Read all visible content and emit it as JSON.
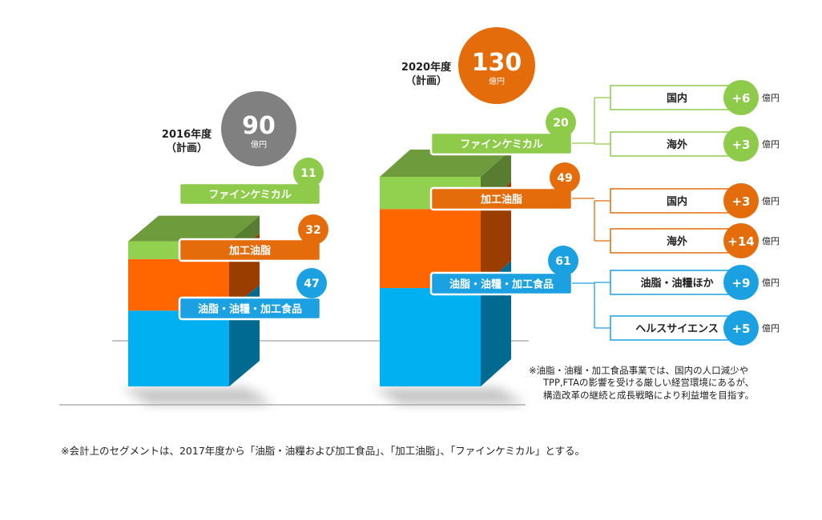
{
  "chart_data": {
    "type": "bar",
    "subtype": "stacked-3d",
    "categories": [
      "2016年度",
      "2020年度"
    ],
    "category_sublabel": "（計画）",
    "unit": "億円",
    "totals": [
      90,
      130
    ],
    "total_colors": [
      "#808080",
      "#E46C0A"
    ],
    "series": [
      {
        "name": "油脂・油糧・加工食品",
        "values": [
          47,
          61
        ],
        "color": "#00B0F0",
        "badge_color": "#1BA1E2"
      },
      {
        "name": "加工油脂",
        "values": [
          32,
          49
        ],
        "color": "#FF6600",
        "badge_color": "#E46C0A"
      },
      {
        "name": "ファインケミカル",
        "values": [
          11,
          20
        ],
        "color": "#92D050",
        "badge_color": "#8FCB4A"
      }
    ],
    "breakdown": [
      {
        "segment": "ファインケミカル",
        "color": "#8FCB4A",
        "items": [
          {
            "label": "国内",
            "delta": "+6"
          },
          {
            "label": "海外",
            "delta": "+3"
          }
        ]
      },
      {
        "segment": "加工油脂",
        "color": "#E46C0A",
        "items": [
          {
            "label": "国内",
            "delta": "+3"
          },
          {
            "label": "海外",
            "delta": "+14"
          }
        ]
      },
      {
        "segment": "油脂・油糧・加工食品",
        "color": "#1BA1E2",
        "items": [
          {
            "label": "油脂・油糧ほか",
            "delta": "+9"
          },
          {
            "label": "ヘルスサイエンス",
            "delta": "+5"
          }
        ]
      }
    ]
  },
  "note_right": [
    "※油脂・油糧・加工食品事業では、国内の人口減少や",
    "TPP,FTAの影響を受ける厳しい経営環境にあるが、",
    "構造改革の継続と成長戦略により利益増を目指す。"
  ],
  "note_bottom": "※会計上のセグメントは、2017年度から「油脂・油糧および加工食品」、「加工油脂」、「ファインケミカル」とする。"
}
